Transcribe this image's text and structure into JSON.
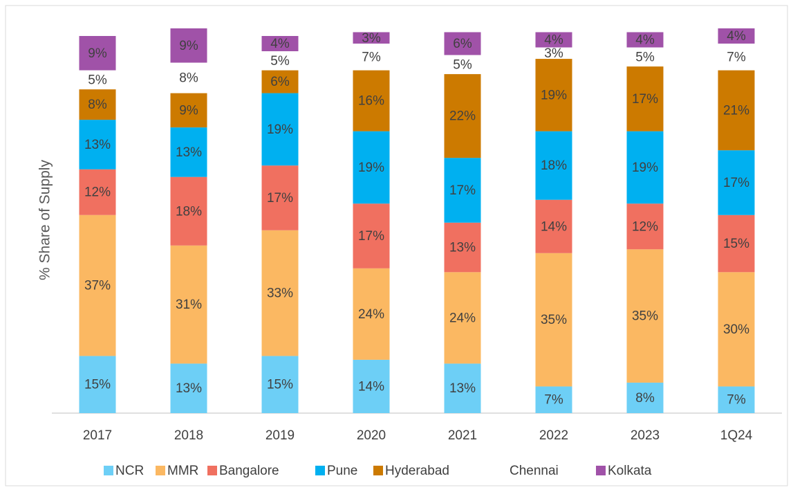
{
  "chart_data": {
    "type": "stacked_bar",
    "y_label": "% Share of Supply",
    "categories": [
      "2017",
      "2018",
      "2019",
      "2020",
      "2021",
      "2022",
      "2023",
      "1Q24"
    ],
    "series": [
      {
        "name": "NCR",
        "color": "#6dcff6",
        "values": [
          15,
          13,
          15,
          14,
          13,
          7,
          8,
          7
        ],
        "value_labels": [
          "15%",
          "13%",
          "15%",
          "14%",
          "13%",
          "7%",
          "8%",
          "7%"
        ]
      },
      {
        "name": "MMR",
        "color": "#fbb862",
        "values": [
          37,
          31,
          33,
          24,
          24,
          35,
          35,
          30
        ],
        "value_labels": [
          "37%",
          "31%",
          "33%",
          "24%",
          "24%",
          "35%",
          "35%",
          "30%"
        ]
      },
      {
        "name": "Bangalore",
        "color": "#f07060",
        "values": [
          12,
          18,
          17,
          17,
          13,
          14,
          12,
          15
        ],
        "value_labels": [
          "12%",
          "18%",
          "17%",
          "17%",
          "13%",
          "14%",
          "12%",
          "15%"
        ]
      },
      {
        "name": "Pune",
        "color": "#00b0f0",
        "values": [
          13,
          13,
          19,
          19,
          17,
          18,
          19,
          17
        ],
        "value_labels": [
          "13%",
          "13%",
          "19%",
          "19%",
          "17%",
          "18%",
          "19%",
          "17%"
        ]
      },
      {
        "name": "Hyderabad",
        "color": "#cc7a00",
        "values": [
          8,
          9,
          6,
          16,
          22,
          19,
          17,
          21
        ],
        "value_labels": [
          "8%",
          "9%",
          "6%",
          "16%",
          "22%",
          "19%",
          "17%",
          "21%"
        ]
      },
      {
        "name": "Chennai",
        "color": "#ffffff",
        "values": [
          5,
          8,
          5,
          7,
          5,
          3,
          5,
          7
        ],
        "value_labels": [
          "5%",
          "8%",
          "5%",
          "7%",
          "5%",
          "3%",
          "5%",
          "7%"
        ]
      },
      {
        "name": "Kolkata",
        "color": "#a052a8",
        "values": [
          9,
          9,
          4,
          3,
          6,
          4,
          4,
          4
        ],
        "value_labels": [
          "9%",
          "9%",
          "4%",
          "3%",
          "6%",
          "4%",
          "4%",
          "4%"
        ]
      }
    ]
  }
}
